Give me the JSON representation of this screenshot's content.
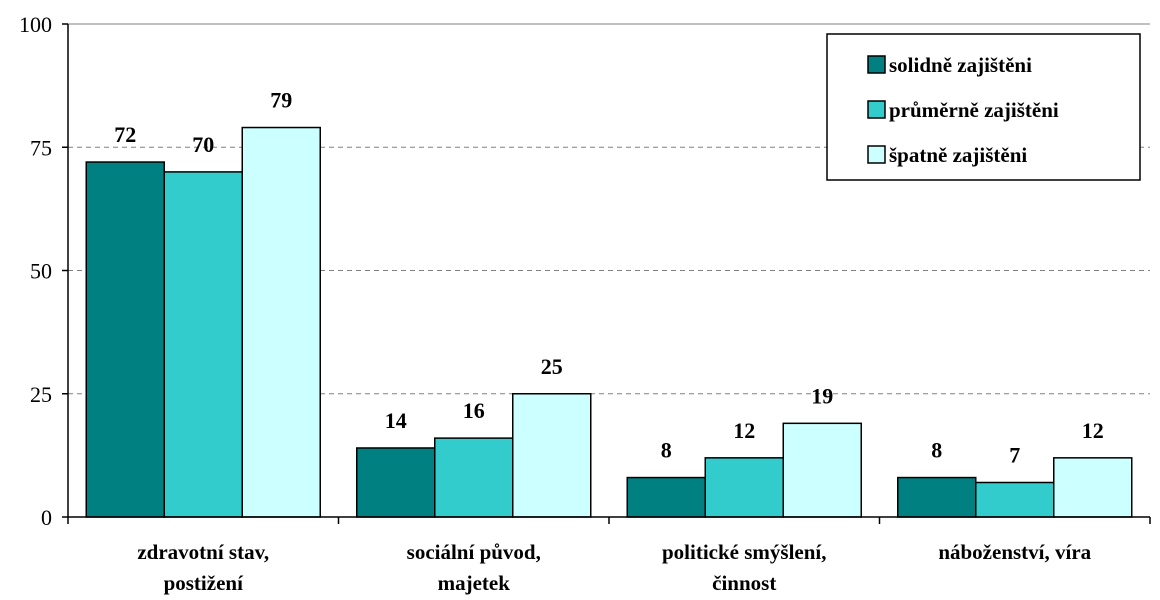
{
  "chart_data": {
    "type": "bar",
    "title": "",
    "xlabel": "",
    "ylabel": "",
    "ylim": [
      0,
      100
    ],
    "yticks": [
      0,
      25,
      50,
      75,
      100
    ],
    "grid": true,
    "legend_position": "top-right",
    "categories": [
      [
        "zdravotní stav,",
        "postižení"
      ],
      [
        "sociální původ,",
        "majetek"
      ],
      [
        "politické smýšlení,",
        "činnost"
      ],
      [
        "náboženství, víra"
      ]
    ],
    "series": [
      {
        "name": "solidně zajištěni",
        "color": "#008080",
        "values": [
          72,
          14,
          8,
          8
        ]
      },
      {
        "name": "průměrně zajištěni",
        "color": "#33CCCC",
        "values": [
          70,
          16,
          12,
          7
        ]
      },
      {
        "name": "špatně zajištěni",
        "color": "#CCFFFF",
        "values": [
          79,
          25,
          19,
          12
        ]
      }
    ]
  }
}
